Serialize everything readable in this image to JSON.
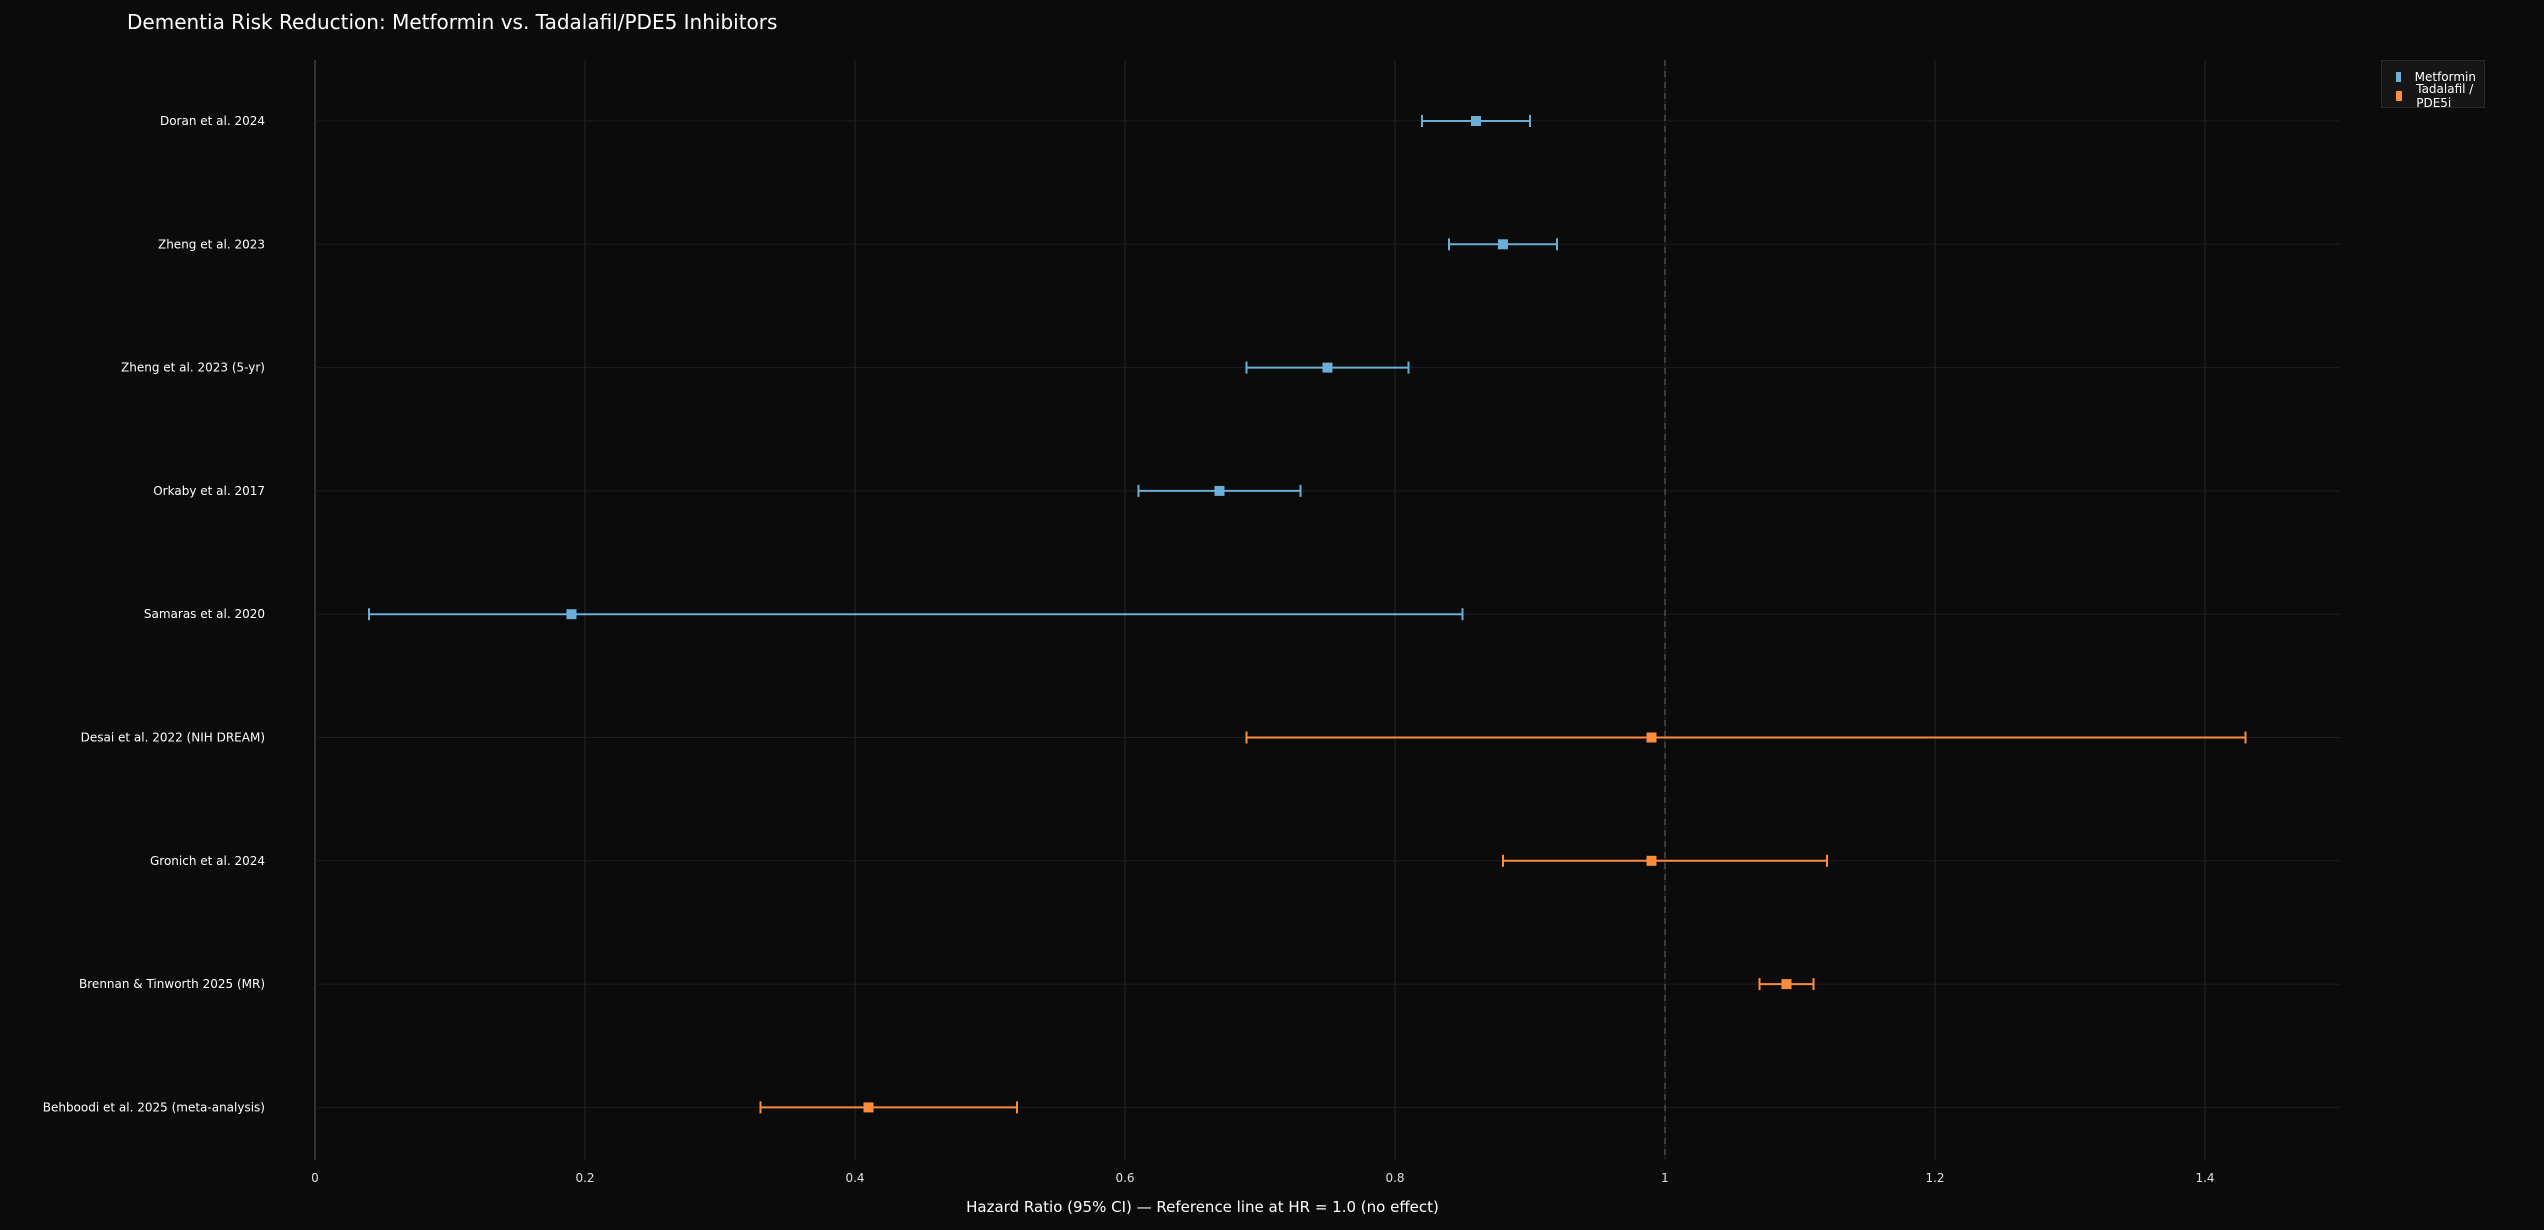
{
  "chart_data": {
    "type": "forest",
    "title": "Dementia Risk Reduction: Metformin vs. Tadalafil/PDE5 Inhibitors",
    "xlabel": "Hazard Ratio (95% CI) — Reference line at HR = 1.0 (no effect)",
    "xlim": [
      0,
      1.5
    ],
    "xticks": [
      0,
      0.2,
      0.4,
      0.6,
      0.8,
      1,
      1.2,
      1.4
    ],
    "xtick_labels": [
      "0",
      "0.2",
      "0.4",
      "0.6",
      "0.8",
      "1",
      "1.2",
      "1.4"
    ],
    "reference_line": 1.0,
    "grid": true,
    "legend_position": "top-right",
    "series": [
      {
        "name": "Metformin",
        "color": "#6baed6",
        "points": [
          {
            "study": "Doran et al. 2024",
            "hr": 0.86,
            "lo": 0.82,
            "hi": 0.9
          },
          {
            "study": "Zheng et al. 2023",
            "hr": 0.88,
            "lo": 0.84,
            "hi": 0.92
          },
          {
            "study": "Zheng et al. 2023 (5-yr)",
            "hr": 0.75,
            "lo": 0.69,
            "hi": 0.81
          },
          {
            "study": "Orkaby et al. 2017",
            "hr": 0.67,
            "lo": 0.61,
            "hi": 0.73
          },
          {
            "study": "Samaras et al. 2020",
            "hr": 0.19,
            "lo": 0.04,
            "hi": 0.85
          }
        ]
      },
      {
        "name": "Tadalafil / PDE5i",
        "color": "#fd8d3c",
        "points": [
          {
            "study": "Desai et al. 2022 (NIH DREAM)",
            "hr": 0.99,
            "lo": 0.69,
            "hi": 1.43
          },
          {
            "study": "Gronich et al. 2024",
            "hr": 0.99,
            "lo": 0.88,
            "hi": 1.12
          },
          {
            "study": "Brennan & Tinworth 2025 (MR)",
            "hr": 1.09,
            "lo": 1.07,
            "hi": 1.11
          },
          {
            "study": "Behboodi et al. 2025 (meta-analysis)",
            "hr": 0.41,
            "lo": 0.33,
            "hi": 0.52
          }
        ]
      }
    ]
  }
}
